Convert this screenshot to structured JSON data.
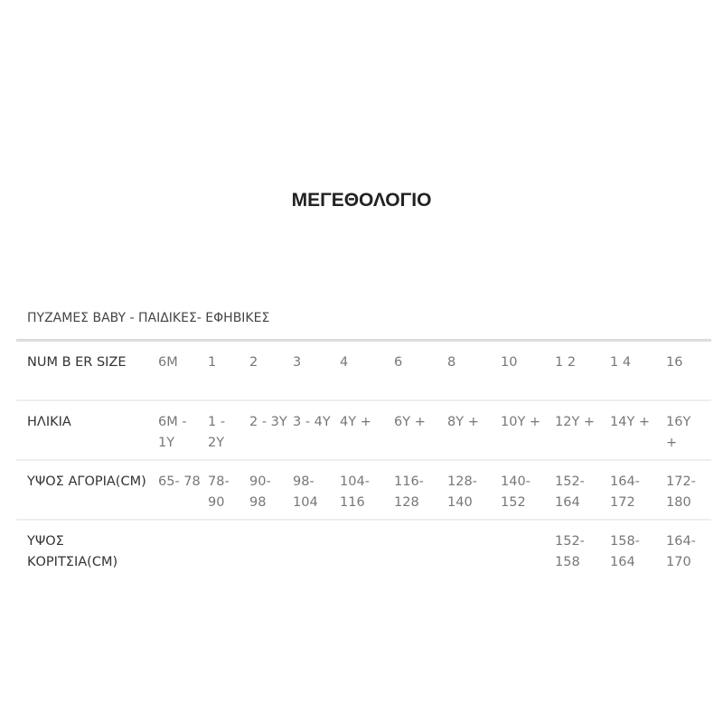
{
  "title": "ΜΕΓΕΘΟΛΟΓΙΟ",
  "subtitle": "ΠΥΖΑΜΕΣ BABY - ΠΑΙΔΙΚΕΣ- ΕΦΗΒΙΚΕΣ",
  "rows": [
    {
      "label": "NUM B ER SIZE",
      "cells": [
        "6M",
        "1",
        "2",
        "3",
        "4",
        "6",
        "8",
        "10",
        "1 2",
        "1 4",
        "16"
      ]
    },
    {
      "label": "ΗΛΙΚΙΑ",
      "cells": [
        "6M - 1Y",
        "1 - 2Y",
        "2 - 3Y",
        "3 - 4Y",
        "4Y +",
        "6Y +",
        "8Y +",
        "10Y +",
        "12Y +",
        "14Y +",
        "16Y +"
      ]
    },
    {
      "label": "ΥΨΟΣ ΑΓΟΡΙΑ(CM)",
      "cells": [
        "65- 78",
        "78- 90",
        "90- 98",
        "98- 104",
        "104- 116",
        "116- 128",
        "128- 140",
        "140- 152",
        "152- 164",
        "164- 172",
        "172- 180"
      ]
    },
    {
      "label": "ΥΨΟΣ ΚΟΡΙΤΣΙΑ(CM)",
      "cells": [
        "",
        "",
        "",
        "",
        "",
        "",
        "",
        "",
        "152- 158",
        "158- 164",
        "164- 170"
      ]
    }
  ]
}
